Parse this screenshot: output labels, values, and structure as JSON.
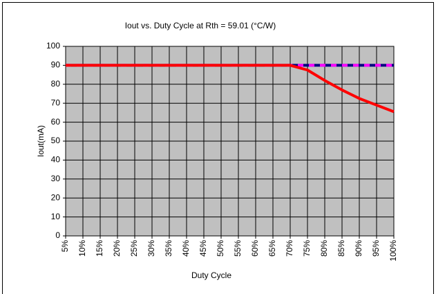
{
  "chart_data": {
    "type": "line",
    "title": "Iout vs. Duty Cycle at Rth = 59.01 (°C/W)",
    "x_label": "Duty Cycle",
    "y_label": "Iout(mA)",
    "categories": [
      "5%",
      "10%",
      "15%",
      "20%",
      "25%",
      "30%",
      "35%",
      "40%",
      "45%",
      "50%",
      "55%",
      "60%",
      "65%",
      "70%",
      "75%",
      "80%",
      "85%",
      "90%",
      "95%",
      "100%"
    ],
    "series": [
      {
        "color": "#000080",
        "style": "solid",
        "values": [
          90,
          90,
          90,
          90,
          90,
          90,
          90,
          90,
          90,
          90,
          90,
          90,
          90,
          90,
          90,
          90,
          90,
          90,
          90,
          90
        ]
      },
      {
        "color": "#ff00ff",
        "style": "dashed",
        "values": [
          90,
          90,
          90,
          90,
          90,
          90,
          90,
          90,
          90,
          90,
          90,
          90,
          90,
          90,
          90,
          90,
          90,
          90,
          90,
          90
        ]
      },
      {
        "color": "#ff0000",
        "style": "solid",
        "values": [
          90,
          90,
          90,
          90,
          90,
          90,
          90,
          90,
          90,
          90,
          90,
          90,
          90,
          90,
          87.5,
          82,
          77,
          72.5,
          69,
          65.5
        ]
      }
    ],
    "ylim": [
      0,
      100
    ],
    "yticks": [
      0,
      10,
      20,
      30,
      40,
      50,
      60,
      70,
      80,
      90,
      100
    ],
    "grid": true,
    "plot_background": "#c0c0c0"
  }
}
